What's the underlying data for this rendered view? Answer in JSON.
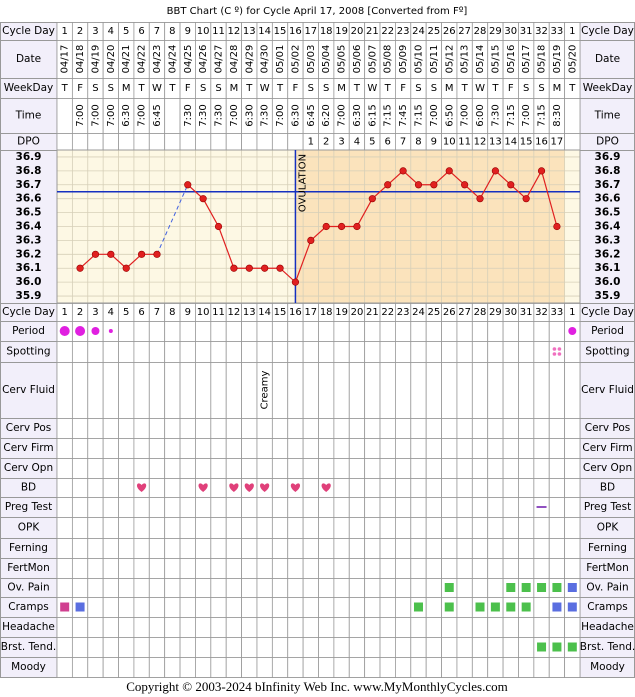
{
  "title": "BBT Chart (C º) for Cycle April 17, 2008  [Converted from Fº]",
  "labels": {
    "cycle_day": "Cycle Day",
    "date": "Date",
    "weekday": "WeekDay",
    "time": "Time",
    "dpo": "DPO",
    "period": "Period",
    "spotting": "Spotting",
    "cerv_fluid": "Cerv Fluid",
    "cerv_pos": "Cerv Pos",
    "cerv_firm": "Cerv Firm",
    "cerv_opn": "Cerv Opn",
    "bd": "BD",
    "preg_test": "Preg Test",
    "opk": "OPK",
    "ferning": "Ferning",
    "fertmon": "FertMon",
    "ov_pain": "Ov. Pain",
    "cramps": "Cramps",
    "headache": "Headache",
    "brst_tend": "Brst. Tend.",
    "moody": "Moody"
  },
  "cycle_days": [
    1,
    2,
    3,
    4,
    5,
    6,
    7,
    8,
    9,
    10,
    11,
    12,
    13,
    14,
    15,
    16,
    17,
    18,
    19,
    20,
    21,
    22,
    23,
    24,
    25,
    26,
    27,
    28,
    29,
    30,
    31,
    32,
    33,
    1
  ],
  "dates": [
    "04/17",
    "04/18",
    "04/19",
    "04/20",
    "04/21",
    "04/22",
    "04/23",
    "04/24",
    "04/25",
    "04/26",
    "04/27",
    "04/28",
    "04/29",
    "04/30",
    "05/01",
    "05/02",
    "05/03",
    "05/04",
    "05/05",
    "05/06",
    "05/07",
    "05/08",
    "05/09",
    "05/10",
    "05/11",
    "05/12",
    "05/13",
    "05/14",
    "05/15",
    "05/16",
    "05/17",
    "05/18",
    "05/19",
    "05/20"
  ],
  "weekdays": [
    "T",
    "F",
    "S",
    "S",
    "M",
    "T",
    "W",
    "T",
    "F",
    "S",
    "S",
    "M",
    "T",
    "W",
    "T",
    "F",
    "S",
    "S",
    "M",
    "T",
    "W",
    "T",
    "F",
    "S",
    "S",
    "M",
    "T",
    "W",
    "T",
    "F",
    "S",
    "S",
    "M",
    "T"
  ],
  "times": [
    null,
    "7:00",
    "7:00",
    "7:00",
    "6:30",
    "7:00",
    "6:45",
    null,
    "7:30",
    "7:30",
    "7:30",
    "7:00",
    "6:30",
    "7:30",
    "7:00",
    "6:30",
    "6:45",
    "6:20",
    "7:00",
    "6:30",
    "6:15",
    "7:15",
    "7:45",
    "7:15",
    "7:00",
    "6:50",
    "7:00",
    "6:00",
    "7:30",
    "7:15",
    "7:00",
    "7:15",
    "8:30",
    null
  ],
  "dpo": [
    null,
    null,
    null,
    null,
    null,
    null,
    null,
    null,
    null,
    null,
    null,
    null,
    null,
    null,
    null,
    null,
    1,
    2,
    3,
    4,
    5,
    6,
    7,
    8,
    9,
    10,
    11,
    12,
    13,
    14,
    15,
    16,
    17,
    null
  ],
  "cerv_fluid": [
    null,
    null,
    null,
    null,
    null,
    null,
    null,
    null,
    null,
    null,
    null,
    null,
    null,
    "Creamy",
    null,
    null,
    null,
    null,
    null,
    null,
    null,
    null,
    null,
    null,
    null,
    null,
    null,
    null,
    null,
    null,
    null,
    null,
    null,
    null
  ],
  "chart_data": {
    "type": "line",
    "values": [
      null,
      36.1,
      36.2,
      36.2,
      36.1,
      36.2,
      36.2,
      null,
      36.7,
      36.6,
      36.4,
      36.1,
      36.1,
      36.1,
      36.1,
      36.0,
      36.3,
      36.4,
      36.4,
      36.4,
      36.6,
      36.7,
      36.8,
      36.7,
      36.7,
      36.8,
      36.7,
      36.6,
      36.8,
      36.7,
      36.6,
      36.8,
      36.4,
      null
    ],
    "color": "#e02020",
    "ylim": [
      35.85,
      36.95
    ],
    "yticks": [
      35.9,
      {
        "value": 36,
        "label": "36.0"
      },
      36.1,
      36.2,
      36.3,
      36.4,
      36.5,
      36.6,
      36.7,
      36.8,
      36.9
    ],
    "grid": true,
    "coverline": 36.65,
    "ovulation_day": 16,
    "annotation": "OVULATION"
  },
  "footer": "Copyright © 2003-2024 bInfinity Web Inc.    www.MyMonthlyCycles.com"
}
